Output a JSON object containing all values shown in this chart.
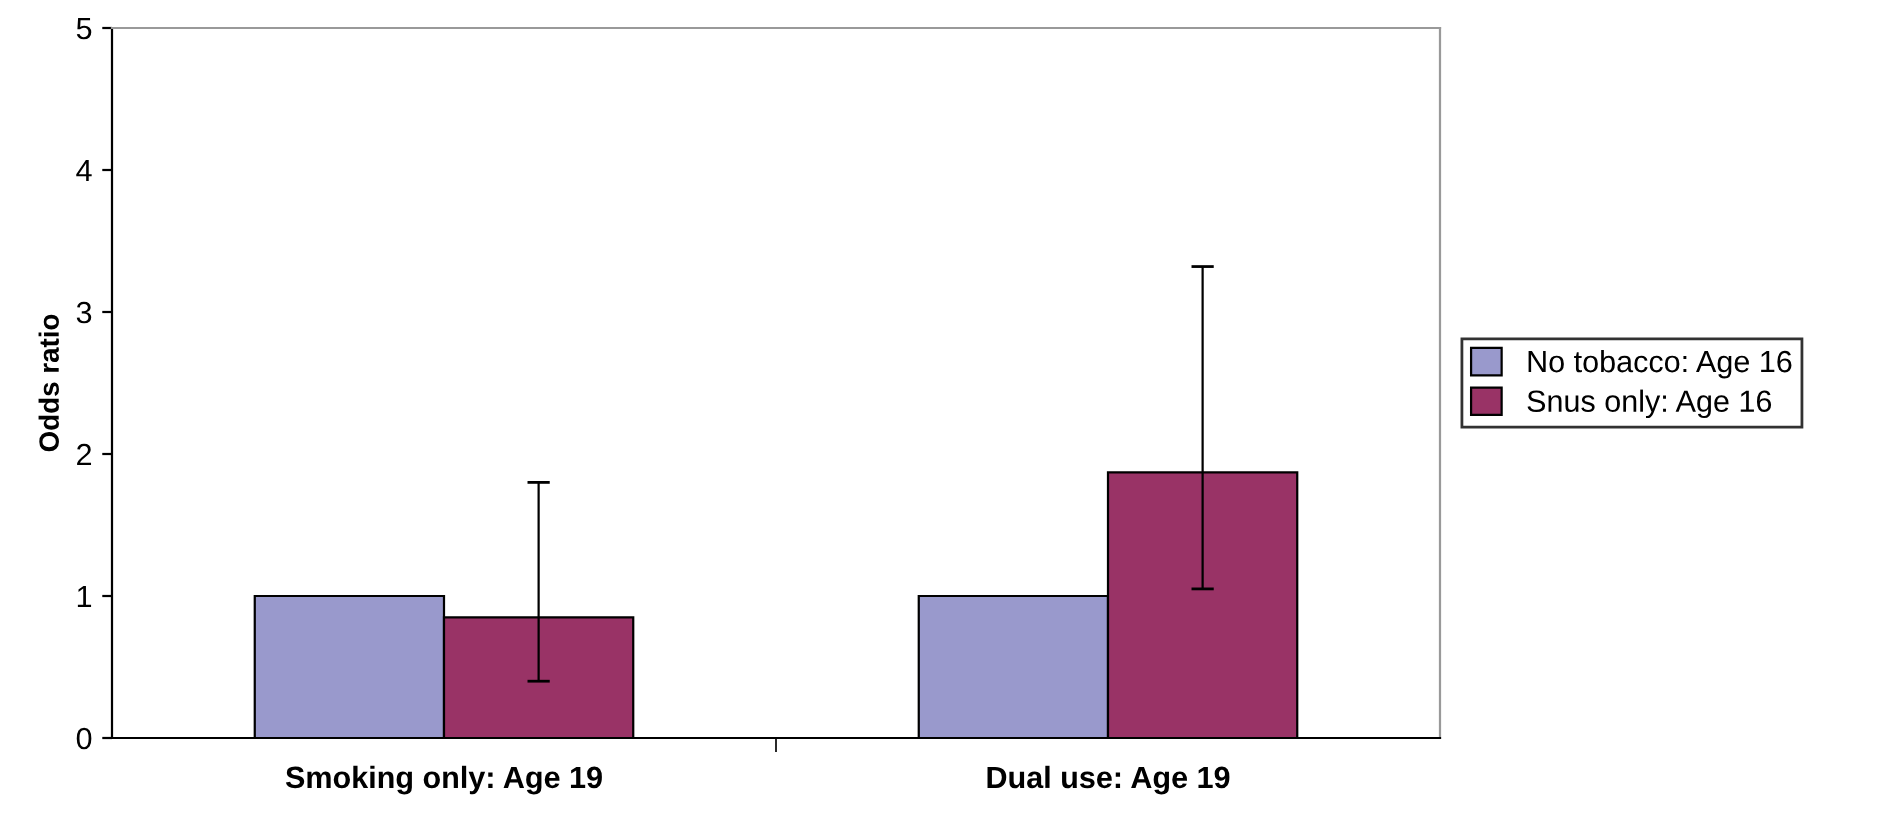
{
  "chart_data": {
    "type": "bar",
    "ylabel": "Odds ratio",
    "categories": [
      "Smoking only: Age 19",
      "Dual use: Age 19"
    ],
    "series": [
      {
        "name": "No tobacco: Age 16",
        "color": "#9999cc",
        "values": [
          1,
          1
        ]
      },
      {
        "name": "Snus only: Age 16",
        "color": "#993366",
        "values": [
          0.85,
          1.87
        ],
        "errors": [
          [
            0.4,
            1.8
          ],
          [
            1.05,
            3.32
          ]
        ]
      }
    ],
    "ylim": [
      0,
      5
    ],
    "yticks": [
      0,
      1,
      2,
      3,
      4,
      5
    ],
    "grid": false,
    "legend": "right"
  }
}
